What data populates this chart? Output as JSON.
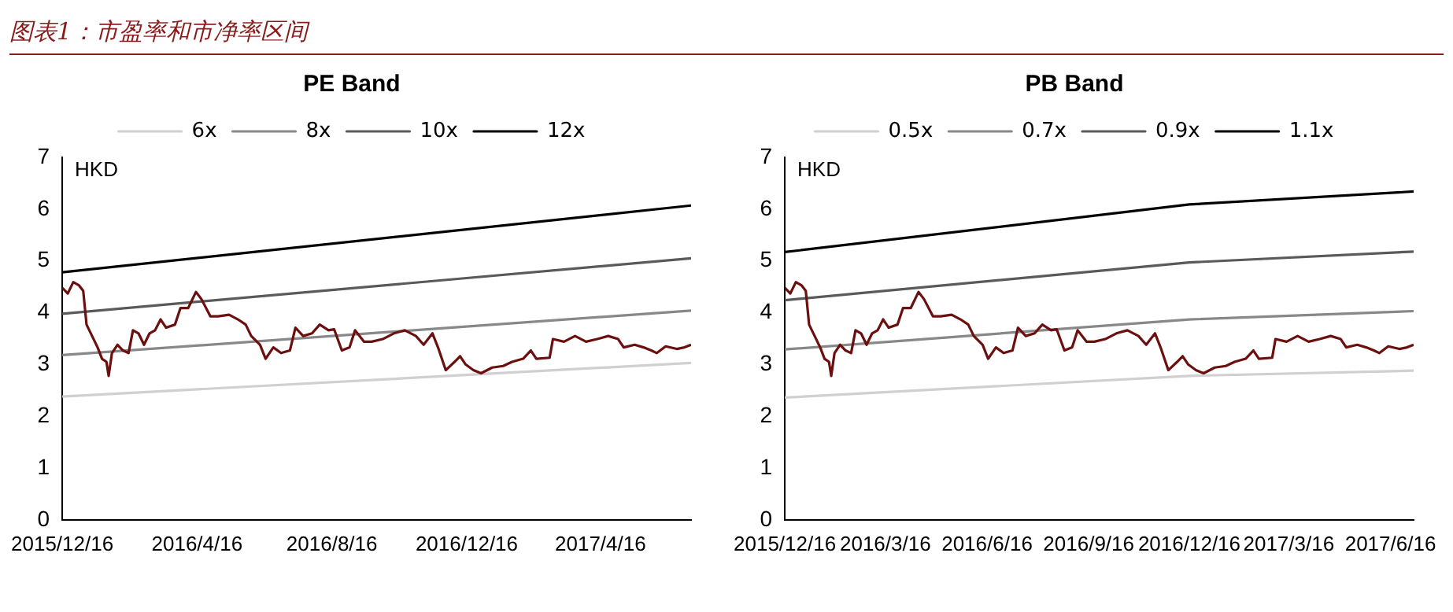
{
  "chart_data": [
    {
      "type": "line",
      "title": "PE Band",
      "ylabel": "HKD",
      "annotations": [
        "图表1：市盈率和市净率区间"
      ],
      "legend": "top",
      "grid": false,
      "marker": "none",
      "line_style": "solid",
      "xlim": [
        "2015-12-16",
        "2017-07-07"
      ],
      "xticks": [
        {
          "value": "2015-12-16",
          "label": "2015/12/16"
        },
        {
          "value": "2016-04-16",
          "label": "2016/4/16"
        },
        {
          "value": "2016-08-16",
          "label": "2016/8/16"
        },
        {
          "value": "2016-12-16",
          "label": "2016/12/16"
        },
        {
          "value": "2017-04-16",
          "label": "2017/4/16"
        }
      ],
      "ylim": [
        0,
        7
      ],
      "yticks": [
        0,
        1,
        2,
        3,
        4,
        5,
        6,
        7
      ],
      "series": [
        {
          "color": "#6b0f0f",
          "x": [
            "2015-12-16",
            "2015-12-21",
            "2015-12-26",
            "2015-12-31",
            "2016-01-04",
            "2016-01-07",
            "2016-01-12",
            "2016-01-17",
            "2016-01-21",
            "2016-01-25",
            "2016-01-27",
            "2016-01-30",
            "2016-02-04",
            "2016-02-09",
            "2016-02-14",
            "2016-02-18",
            "2016-02-23",
            "2016-02-28",
            "2016-03-04",
            "2016-03-09",
            "2016-03-14",
            "2016-03-19",
            "2016-03-27",
            "2016-04-01",
            "2016-04-08",
            "2016-04-15",
            "2016-04-20",
            "2016-04-28",
            "2016-05-05",
            "2016-05-15",
            "2016-05-23",
            "2016-05-30",
            "2016-06-04",
            "2016-06-12",
            "2016-06-17",
            "2016-06-24",
            "2016-07-01",
            "2016-07-09",
            "2016-07-14",
            "2016-07-21",
            "2016-07-29",
            "2016-08-05",
            "2016-08-13",
            "2016-08-18",
            "2016-08-25",
            "2016-09-01",
            "2016-09-06",
            "2016-09-14",
            "2016-09-21",
            "2016-10-01",
            "2016-10-11",
            "2016-10-21",
            "2016-10-31",
            "2016-11-07",
            "2016-11-15",
            "2016-11-20",
            "2016-11-27",
            "2016-12-05",
            "2016-12-10",
            "2016-12-15",
            "2016-12-22",
            "2016-12-29",
            "2017-01-08",
            "2017-01-18",
            "2017-01-26",
            "2017-02-05",
            "2017-02-12",
            "2017-02-17",
            "2017-03-01",
            "2017-03-04",
            "2017-03-14",
            "2017-03-24",
            "2017-04-03",
            "2017-04-13",
            "2017-04-23",
            "2017-05-02",
            "2017-05-07",
            "2017-05-17",
            "2017-05-25",
            "2017-06-01",
            "2017-06-06",
            "2017-06-14",
            "2017-06-24",
            "2017-07-01",
            "2017-07-07"
          ],
          "values": [
            4.48,
            4.37,
            4.59,
            4.53,
            4.42,
            3.77,
            3.55,
            3.33,
            3.11,
            3.05,
            2.78,
            3.22,
            3.38,
            3.27,
            3.22,
            3.66,
            3.6,
            3.38,
            3.6,
            3.66,
            3.87,
            3.71,
            3.77,
            4.09,
            4.09,
            4.4,
            4.26,
            3.93,
            3.93,
            3.96,
            3.87,
            3.77,
            3.55,
            3.38,
            3.11,
            3.33,
            3.22,
            3.27,
            3.71,
            3.55,
            3.6,
            3.77,
            3.66,
            3.68,
            3.27,
            3.33,
            3.66,
            3.44,
            3.44,
            3.49,
            3.6,
            3.66,
            3.55,
            3.38,
            3.6,
            3.33,
            2.89,
            3.05,
            3.16,
            3.0,
            2.89,
            2.83,
            2.94,
            2.97,
            3.05,
            3.11,
            3.27,
            3.11,
            3.13,
            3.49,
            3.44,
            3.55,
            3.44,
            3.49,
            3.55,
            3.49,
            3.33,
            3.38,
            3.33,
            3.27,
            3.22,
            3.35,
            3.3,
            3.33,
            3.38
          ]
        },
        {
          "name": "6x",
          "color": "#d0d0d0",
          "x": [
            "2015-12-16",
            "2017-07-07"
          ],
          "values": [
            2.38,
            3.03
          ]
        },
        {
          "name": "8x",
          "color": "#888888",
          "x": [
            "2015-12-16",
            "2017-07-07"
          ],
          "values": [
            3.18,
            4.04
          ]
        },
        {
          "name": "10x",
          "color": "#5a5a5a",
          "x": [
            "2015-12-16",
            "2017-07-07"
          ],
          "values": [
            3.98,
            5.05
          ]
        },
        {
          "name": "12x",
          "color": "#000000",
          "x": [
            "2015-12-16",
            "2017-07-07"
          ],
          "values": [
            4.78,
            6.07
          ]
        }
      ]
    },
    {
      "type": "line",
      "title": "PB Band",
      "ylabel": "HKD",
      "legend": "top",
      "grid": false,
      "marker": "none",
      "line_style": "solid",
      "xlim": [
        "2015-12-16",
        "2017-07-07"
      ],
      "xticks": [
        {
          "value": "2015-12-16",
          "label": "2015/12/16"
        },
        {
          "value": "2016-03-16",
          "label": "2016/3/16"
        },
        {
          "value": "2016-06-16",
          "label": "2016/6/16"
        },
        {
          "value": "2016-09-16",
          "label": "2016/9/16"
        },
        {
          "value": "2016-12-16",
          "label": "2016/12/16"
        },
        {
          "value": "2017-03-16",
          "label": "2017/3/16"
        },
        {
          "value": "2017-06-16",
          "label": "2017/6/16"
        }
      ],
      "ylim": [
        0,
        7
      ],
      "yticks": [
        0,
        1,
        2,
        3,
        4,
        5,
        6,
        7
      ],
      "series": [
        {
          "color": "#6b0f0f",
          "x": [
            "2015-12-16",
            "2015-12-21",
            "2015-12-26",
            "2015-12-31",
            "2016-01-04",
            "2016-01-07",
            "2016-01-12",
            "2016-01-17",
            "2016-01-21",
            "2016-01-25",
            "2016-01-27",
            "2016-01-30",
            "2016-02-04",
            "2016-02-09",
            "2016-02-14",
            "2016-02-18",
            "2016-02-23",
            "2016-02-28",
            "2016-03-04",
            "2016-03-09",
            "2016-03-14",
            "2016-03-19",
            "2016-03-27",
            "2016-04-01",
            "2016-04-08",
            "2016-04-15",
            "2016-04-20",
            "2016-04-28",
            "2016-05-05",
            "2016-05-15",
            "2016-05-23",
            "2016-05-30",
            "2016-06-04",
            "2016-06-12",
            "2016-06-17",
            "2016-06-24",
            "2016-07-01",
            "2016-07-09",
            "2016-07-14",
            "2016-07-21",
            "2016-07-29",
            "2016-08-05",
            "2016-08-13",
            "2016-08-18",
            "2016-08-25",
            "2016-09-01",
            "2016-09-06",
            "2016-09-14",
            "2016-09-21",
            "2016-10-01",
            "2016-10-11",
            "2016-10-21",
            "2016-10-31",
            "2016-11-07",
            "2016-11-15",
            "2016-11-20",
            "2016-11-27",
            "2016-12-05",
            "2016-12-10",
            "2016-12-15",
            "2016-12-22",
            "2016-12-29",
            "2017-01-08",
            "2017-01-18",
            "2017-01-26",
            "2017-02-05",
            "2017-02-12",
            "2017-02-17",
            "2017-03-01",
            "2017-03-04",
            "2017-03-14",
            "2017-03-24",
            "2017-04-03",
            "2017-04-13",
            "2017-04-23",
            "2017-05-02",
            "2017-05-07",
            "2017-05-17",
            "2017-05-25",
            "2017-06-01",
            "2017-06-06",
            "2017-06-14",
            "2017-06-24",
            "2017-07-01",
            "2017-07-07"
          ],
          "values": [
            4.48,
            4.37,
            4.59,
            4.53,
            4.42,
            3.77,
            3.55,
            3.33,
            3.11,
            3.05,
            2.78,
            3.22,
            3.38,
            3.27,
            3.22,
            3.66,
            3.6,
            3.38,
            3.6,
            3.66,
            3.87,
            3.71,
            3.77,
            4.09,
            4.09,
            4.4,
            4.26,
            3.93,
            3.93,
            3.96,
            3.87,
            3.77,
            3.55,
            3.38,
            3.11,
            3.33,
            3.22,
            3.27,
            3.71,
            3.55,
            3.6,
            3.77,
            3.66,
            3.68,
            3.27,
            3.33,
            3.66,
            3.44,
            3.44,
            3.49,
            3.6,
            3.66,
            3.55,
            3.38,
            3.6,
            3.33,
            2.89,
            3.05,
            3.16,
            3.0,
            2.89,
            2.83,
            2.94,
            2.97,
            3.05,
            3.11,
            3.27,
            3.11,
            3.13,
            3.49,
            3.44,
            3.55,
            3.44,
            3.49,
            3.55,
            3.49,
            3.33,
            3.38,
            3.33,
            3.27,
            3.22,
            3.35,
            3.3,
            3.33,
            3.38
          ]
        },
        {
          "name": "0.5x",
          "color": "#d0d0d0",
          "x": [
            "2015-12-16",
            "2016-12-16",
            "2017-07-07"
          ],
          "values": [
            2.36,
            2.78,
            2.88
          ]
        },
        {
          "name": "0.7x",
          "color": "#888888",
          "x": [
            "2015-12-16",
            "2016-12-16",
            "2017-07-07"
          ],
          "values": [
            3.29,
            3.87,
            4.03
          ]
        },
        {
          "name": "0.9x",
          "color": "#5a5a5a",
          "x": [
            "2015-12-16",
            "2016-12-16",
            "2017-07-07"
          ],
          "values": [
            4.24,
            4.97,
            5.18
          ]
        },
        {
          "name": "1.1x",
          "color": "#000000",
          "x": [
            "2015-12-16",
            "2016-12-16",
            "2017-07-07"
          ],
          "values": [
            5.17,
            6.09,
            6.34
          ]
        }
      ]
    }
  ]
}
